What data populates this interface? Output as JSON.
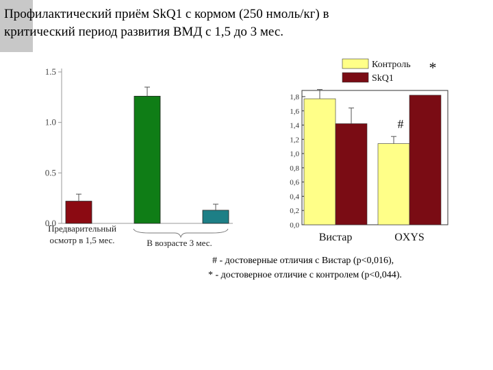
{
  "slide": {
    "title_line1": "Профилактический приём SkQ1 с кормом (250 нмоль/кг) в",
    "title_line2": "критический период развития ВМД с 1,5 до 3 мес.",
    "note_line1": "# - достоверные отличия с Вистар (p<0,016),",
    "note_line2": "* - достоверное отличие с контролем (p<0,044)."
  },
  "chart_data": [
    {
      "type": "bar",
      "title": "",
      "xlabel": "",
      "ylabel": "",
      "ylim": [
        0,
        1.5
      ],
      "yticks": [
        "0.0",
        "0.5",
        "1.0",
        "1.5"
      ],
      "y_tick_values": [
        0,
        0.5,
        1.0,
        1.5
      ],
      "groups": [
        {
          "label": "Предварительный осмотр в 1,5 мес.",
          "label_lines": [
            "Предварительный",
            "осмотр в 1,5 мес."
          ]
        },
        {
          "label": "В возрасте 3 мес.",
          "label_lines": [
            "В возрасте 3 мес."
          ]
        }
      ],
      "bars": [
        {
          "group": 0,
          "value": 0.22,
          "error": 0.07,
          "color": "#8b0a12"
        },
        {
          "group": 1,
          "value": 1.26,
          "error": 0.09,
          "color": "#0f7d16"
        },
        {
          "group": 1,
          "value": 0.13,
          "error": 0.06,
          "color": "#1d7f86"
        }
      ],
      "grid": false,
      "legend": "none"
    },
    {
      "type": "bar",
      "title": "",
      "xlabel": "",
      "ylabel": "",
      "ylim": [
        0,
        1.8
      ],
      "yticks": [
        "0,0",
        "0,2",
        "0,4",
        "0,6",
        "0,8",
        "1,0",
        "1,2",
        "1,4",
        "1,6",
        "1,8"
      ],
      "y_tick_values": [
        0,
        0.2,
        0.4,
        0.6,
        0.8,
        1.0,
        1.2,
        1.4,
        1.6,
        1.8
      ],
      "categories": [
        "Вистар",
        "OXYS"
      ],
      "series": [
        {
          "name": "Контроль",
          "color": "#ffff88",
          "values": [
            1.77,
            1.14
          ],
          "errors": [
            0.13,
            0.1
          ]
        },
        {
          "name": "SkQ1",
          "color": "#7a0c14",
          "values": [
            1.42,
            1.82
          ],
          "errors": [
            0.22,
            null
          ]
        }
      ],
      "annotations": [
        {
          "text": "#",
          "category": 1,
          "series": 0,
          "position": "above bar"
        },
        {
          "text": "*",
          "category": 1,
          "series": 1,
          "position": "above bar"
        }
      ],
      "grid": false,
      "legend": "top-right"
    }
  ],
  "colors": {
    "corner_block": "#c8c8c8"
  }
}
